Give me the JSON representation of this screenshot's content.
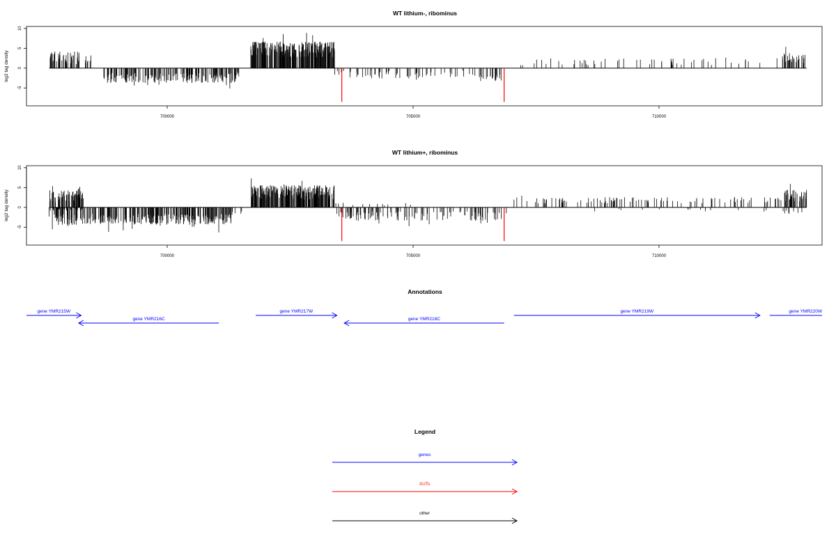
{
  "panels": [
    {
      "title": "WT lithium-, ribominus",
      "ylabel": "log2 tag density",
      "yticks": [
        10,
        5,
        0,
        -5
      ],
      "xticks": [
        700000,
        705000,
        710000
      ],
      "xlim": [
        697000,
        713600
      ],
      "ylim": [
        -9.5,
        10.5
      ],
      "special_lines": [
        {
          "x": 703550,
          "y": -8.5,
          "color": "#ff0000"
        },
        {
          "x": 706850,
          "y": -8.5,
          "color": "#ff0000"
        }
      ],
      "segments": [
        {
          "start": 697600,
          "end": 698250,
          "type": "pos",
          "level": 2.6,
          "var": 1.6,
          "n": 55
        },
        {
          "start": 698300,
          "end": 698450,
          "type": "pos",
          "level": 1.6,
          "var": 0.8,
          "n": 8
        },
        {
          "start": 698700,
          "end": 701500,
          "type": "neg",
          "level": 2.5,
          "var": 1.3,
          "n": 190
        },
        {
          "start": 701400,
          "end": 701500,
          "type": "neg",
          "level": 1.0,
          "var": 0.4,
          "n": 3
        },
        {
          "start": 701700,
          "end": 703400,
          "type": "pos",
          "level": 4.7,
          "var": 2.0,
          "n": 260
        },
        {
          "start": 703400,
          "end": 706200,
          "type": "neg",
          "level": 1.6,
          "var": 1.0,
          "n": 60
        },
        {
          "start": 706200,
          "end": 706800,
          "type": "neg",
          "level": 2.4,
          "var": 0.9,
          "n": 22
        },
        {
          "start": 707000,
          "end": 712500,
          "type": "pos",
          "level": 1.6,
          "var": 0.9,
          "n": 55
        },
        {
          "start": 712500,
          "end": 713000,
          "type": "pos",
          "level": 2.4,
          "var": 1.3,
          "n": 30
        }
      ]
    },
    {
      "title": "WT lithium+, ribominus",
      "ylabel": "log2 tag density",
      "yticks": [
        10,
        5,
        0,
        -5
      ],
      "xticks": [
        700000,
        705000,
        710000
      ],
      "xlim": [
        697000,
        713600
      ],
      "ylim": [
        -9.5,
        10.5
      ],
      "special_lines": [
        {
          "x": 703550,
          "y": -8.5,
          "color": "#ff0000"
        },
        {
          "x": 706850,
          "y": -8.5,
          "color": "#ff0000"
        }
      ],
      "segments": [
        {
          "start": 697600,
          "end": 698300,
          "type": "pos",
          "level": 2.8,
          "var": 1.5,
          "n": 65
        },
        {
          "start": 697600,
          "end": 698300,
          "type": "neg",
          "level": 0.6,
          "var": 0.3,
          "n": 20
        },
        {
          "start": 697600,
          "end": 701300,
          "type": "neg",
          "level": 3.0,
          "var": 1.4,
          "n": 300
        },
        {
          "start": 701300,
          "end": 701600,
          "type": "neg",
          "level": 1.4,
          "var": 0.6,
          "n": 5
        },
        {
          "start": 701700,
          "end": 703400,
          "type": "pos",
          "level": 3.8,
          "var": 1.8,
          "n": 230
        },
        {
          "start": 703400,
          "end": 706900,
          "type": "neg",
          "level": 2.2,
          "var": 1.2,
          "n": 120
        },
        {
          "start": 703400,
          "end": 705000,
          "type": "pos",
          "level": 0.8,
          "var": 0.4,
          "n": 12
        },
        {
          "start": 707000,
          "end": 712500,
          "type": "pos",
          "level": 1.8,
          "var": 0.8,
          "n": 110
        },
        {
          "start": 708000,
          "end": 712500,
          "type": "neg",
          "level": 0.7,
          "var": 0.4,
          "n": 14
        },
        {
          "start": 712500,
          "end": 713000,
          "type": "pos",
          "level": 3.0,
          "var": 1.5,
          "n": 40
        },
        {
          "start": 712500,
          "end": 713000,
          "type": "neg",
          "level": 1.0,
          "var": 0.5,
          "n": 8
        }
      ]
    }
  ],
  "annotations": {
    "title": "Annotations",
    "genes": [
      {
        "label": "gene YMR215W",
        "start": 697000,
        "end": 698250,
        "strand": "+",
        "row": 0,
        "label_pos": "center"
      },
      {
        "label": "gene YMR216C",
        "start": 698200,
        "end": 701050,
        "strand": "-",
        "row": 1,
        "label_pos": "center"
      },
      {
        "label": "gene YMR217W",
        "start": 701800,
        "end": 703450,
        "strand": "+",
        "row": 0,
        "label_pos": "center"
      },
      {
        "label": "gene YMR218C",
        "start": 703600,
        "end": 706850,
        "strand": "-",
        "row": 1,
        "label_pos": "center"
      },
      {
        "label": "gene YMR219W",
        "start": 707050,
        "end": 712050,
        "strand": "+",
        "row": 0,
        "label_pos": "center"
      },
      {
        "label": "gene YMR220W",
        "start": 712250,
        "end": 713600,
        "strand": "+",
        "row": 0,
        "label_pos": "end"
      }
    ]
  },
  "legend": {
    "title": "Legend",
    "items": [
      {
        "label": "genes",
        "color": "#0000ff"
      },
      {
        "label": "XUTs",
        "color": "#ff0000"
      },
      {
        "label": "other",
        "color": "#000000"
      }
    ]
  },
  "chart_data": [
    {
      "type": "bar",
      "title": "WT lithium-, ribominus",
      "xlabel": "",
      "ylabel": "log2 tag density",
      "ylim": [
        -9.5,
        10.5
      ],
      "x_range": [
        697000,
        713600
      ],
      "grid": false,
      "description_values": {
        "positive_peak_max": 9.5,
        "negative_peak_min": -6
      }
    },
    {
      "type": "bar",
      "title": "WT lithium+, ribominus",
      "xlabel": "",
      "ylabel": "log2 tag density",
      "ylim": [
        -9.5,
        10.5
      ],
      "x_range": [
        697000,
        713600
      ],
      "grid": false,
      "description_values": {
        "positive_peak_max": 8,
        "negative_peak_min": -8
      }
    }
  ]
}
